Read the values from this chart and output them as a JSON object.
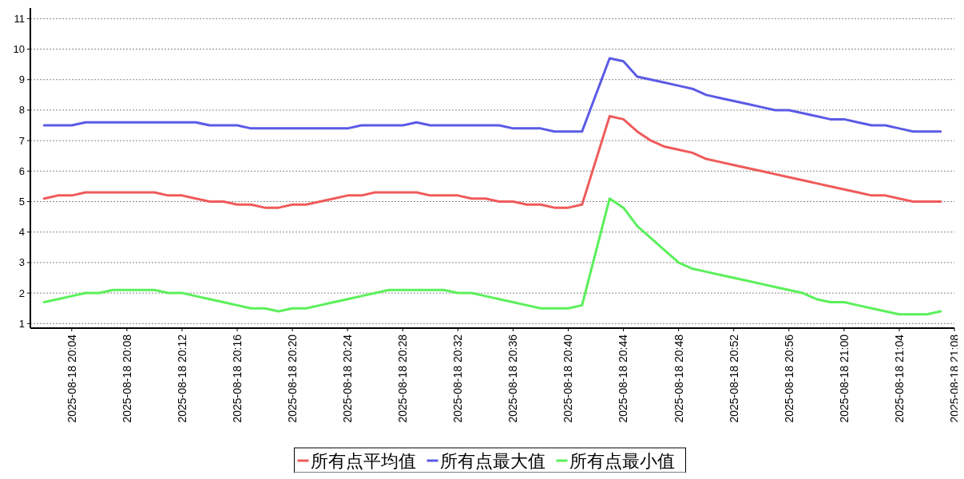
{
  "chart_data": {
    "type": "line",
    "x": [
      "2025-08-18T20:02",
      "2025-08-18T20:03",
      "2025-08-18T20:04",
      "2025-08-18T20:05",
      "2025-08-18T20:06",
      "2025-08-18T20:07",
      "2025-08-18T20:08",
      "2025-08-18T20:09",
      "2025-08-18T20:10",
      "2025-08-18T20:11",
      "2025-08-18T20:12",
      "2025-08-18T20:13",
      "2025-08-18T20:14",
      "2025-08-18T20:15",
      "2025-08-18T20:16",
      "2025-08-18T20:17",
      "2025-08-18T20:18",
      "2025-08-18T20:19",
      "2025-08-18T20:20",
      "2025-08-18T20:21",
      "2025-08-18T20:22",
      "2025-08-18T20:23",
      "2025-08-18T20:24",
      "2025-08-18T20:25",
      "2025-08-18T20:26",
      "2025-08-18T20:27",
      "2025-08-18T20:28",
      "2025-08-18T20:29",
      "2025-08-18T20:30",
      "2025-08-18T20:31",
      "2025-08-18T20:32",
      "2025-08-18T20:33",
      "2025-08-18T20:34",
      "2025-08-18T20:35",
      "2025-08-18T20:36",
      "2025-08-18T20:37",
      "2025-08-18T20:38",
      "2025-08-18T20:39",
      "2025-08-18T20:40",
      "2025-08-18T20:41",
      "2025-08-18T20:43",
      "2025-08-18T20:44",
      "2025-08-18T20:45",
      "2025-08-18T20:46",
      "2025-08-18T20:47",
      "2025-08-18T20:48",
      "2025-08-18T20:49",
      "2025-08-18T20:50",
      "2025-08-18T20:51",
      "2025-08-18T20:52",
      "2025-08-18T20:53",
      "2025-08-18T20:54",
      "2025-08-18T20:55",
      "2025-08-18T20:56",
      "2025-08-18T20:57",
      "2025-08-18T20:58",
      "2025-08-18T20:59",
      "2025-08-18T21:00",
      "2025-08-18T21:01",
      "2025-08-18T21:02",
      "2025-08-18T21:03",
      "2025-08-18T21:04",
      "2025-08-18T21:05",
      "2025-08-18T21:06",
      "2025-08-18T21:07"
    ],
    "series": [
      {
        "name": "所有点平均值",
        "color": "#f05a5a",
        "values": [
          5.1,
          5.2,
          5.2,
          5.3,
          5.3,
          5.3,
          5.3,
          5.3,
          5.3,
          5.2,
          5.2,
          5.1,
          5.0,
          5.0,
          4.9,
          4.9,
          4.8,
          4.8,
          4.9,
          4.9,
          5.0,
          5.1,
          5.2,
          5.2,
          5.3,
          5.3,
          5.3,
          5.3,
          5.2,
          5.2,
          5.2,
          5.1,
          5.1,
          5.0,
          5.0,
          4.9,
          4.9,
          4.8,
          4.8,
          4.9,
          7.8,
          7.7,
          7.3,
          7.0,
          6.8,
          6.7,
          6.6,
          6.4,
          6.3,
          6.2,
          6.1,
          6.0,
          5.9,
          5.8,
          5.7,
          5.6,
          5.5,
          5.4,
          5.3,
          5.2,
          5.2,
          5.1,
          5.0,
          5.0,
          5.0
        ]
      },
      {
        "name": "所有点最大值",
        "color": "#5a5ae6",
        "values": [
          7.5,
          7.5,
          7.5,
          7.6,
          7.6,
          7.6,
          7.6,
          7.6,
          7.6,
          7.6,
          7.6,
          7.6,
          7.5,
          7.5,
          7.5,
          7.4,
          7.4,
          7.4,
          7.4,
          7.4,
          7.4,
          7.4,
          7.4,
          7.5,
          7.5,
          7.5,
          7.5,
          7.6,
          7.5,
          7.5,
          7.5,
          7.5,
          7.5,
          7.5,
          7.4,
          7.4,
          7.4,
          7.3,
          7.3,
          7.3,
          9.7,
          9.6,
          9.1,
          9.0,
          8.9,
          8.8,
          8.7,
          8.5,
          8.4,
          8.3,
          8.2,
          8.1,
          8.0,
          8.0,
          7.9,
          7.8,
          7.7,
          7.7,
          7.6,
          7.5,
          7.5,
          7.4,
          7.3,
          7.3,
          7.3
        ]
      },
      {
        "name": "所有点最小值",
        "color": "#5af05a",
        "values": [
          1.7,
          1.8,
          1.9,
          2.0,
          2.0,
          2.1,
          2.1,
          2.1,
          2.1,
          2.0,
          2.0,
          1.9,
          1.8,
          1.7,
          1.6,
          1.5,
          1.5,
          1.4,
          1.5,
          1.5,
          1.6,
          1.7,
          1.8,
          1.9,
          2.0,
          2.1,
          2.1,
          2.1,
          2.1,
          2.1,
          2.0,
          2.0,
          1.9,
          1.8,
          1.7,
          1.6,
          1.5,
          1.5,
          1.5,
          1.6,
          5.1,
          4.8,
          4.2,
          3.8,
          3.4,
          3.0,
          2.8,
          2.7,
          2.6,
          2.5,
          2.4,
          2.3,
          2.2,
          2.1,
          2.0,
          1.8,
          1.7,
          1.7,
          1.6,
          1.5,
          1.4,
          1.3,
          1.3,
          1.3,
          1.4
        ]
      }
    ],
    "xlim": [
      "2025-08-18T20:01",
      "2025-08-18T21:08"
    ],
    "xticks": [
      {
        "value": "2025-08-18T20:04",
        "label": "2025-08-18 20:04"
      },
      {
        "value": "2025-08-18T20:08",
        "label": "2025-08-18 20:08"
      },
      {
        "value": "2025-08-18T20:12",
        "label": "2025-08-18 20:12"
      },
      {
        "value": "2025-08-18T20:16",
        "label": "2025-08-18 20:16"
      },
      {
        "value": "2025-08-18T20:20",
        "label": "2025-08-18 20:20"
      },
      {
        "value": "2025-08-18T20:24",
        "label": "2025-08-18 20:24"
      },
      {
        "value": "2025-08-18T20:28",
        "label": "2025-08-18 20:28"
      },
      {
        "value": "2025-08-18T20:32",
        "label": "2025-08-18 20:32"
      },
      {
        "value": "2025-08-18T20:36",
        "label": "2025-08-18 20:36"
      },
      {
        "value": "2025-08-18T20:40",
        "label": "2025-08-18 20:40"
      },
      {
        "value": "2025-08-18T20:44",
        "label": "2025-08-18 20:44"
      },
      {
        "value": "2025-08-18T20:48",
        "label": "2025-08-18 20:48"
      },
      {
        "value": "2025-08-18T20:52",
        "label": "2025-08-18 20:52"
      },
      {
        "value": "2025-08-18T20:56",
        "label": "2025-08-18 20:56"
      },
      {
        "value": "2025-08-18T21:00",
        "label": "2025-08-18 21:00"
      },
      {
        "value": "2025-08-18T21:04",
        "label": "2025-08-18 21:04"
      },
      {
        "value": "2025-08-18T21:08",
        "label": "2025-08-18 21:08"
      }
    ],
    "ylim": [
      0.85,
      11.35
    ],
    "yticks": [
      1,
      2,
      3,
      4,
      5,
      6,
      7,
      8,
      9,
      10,
      11
    ],
    "grid": "y",
    "legend": "bottom",
    "marker": "none",
    "line_style": "solid"
  }
}
